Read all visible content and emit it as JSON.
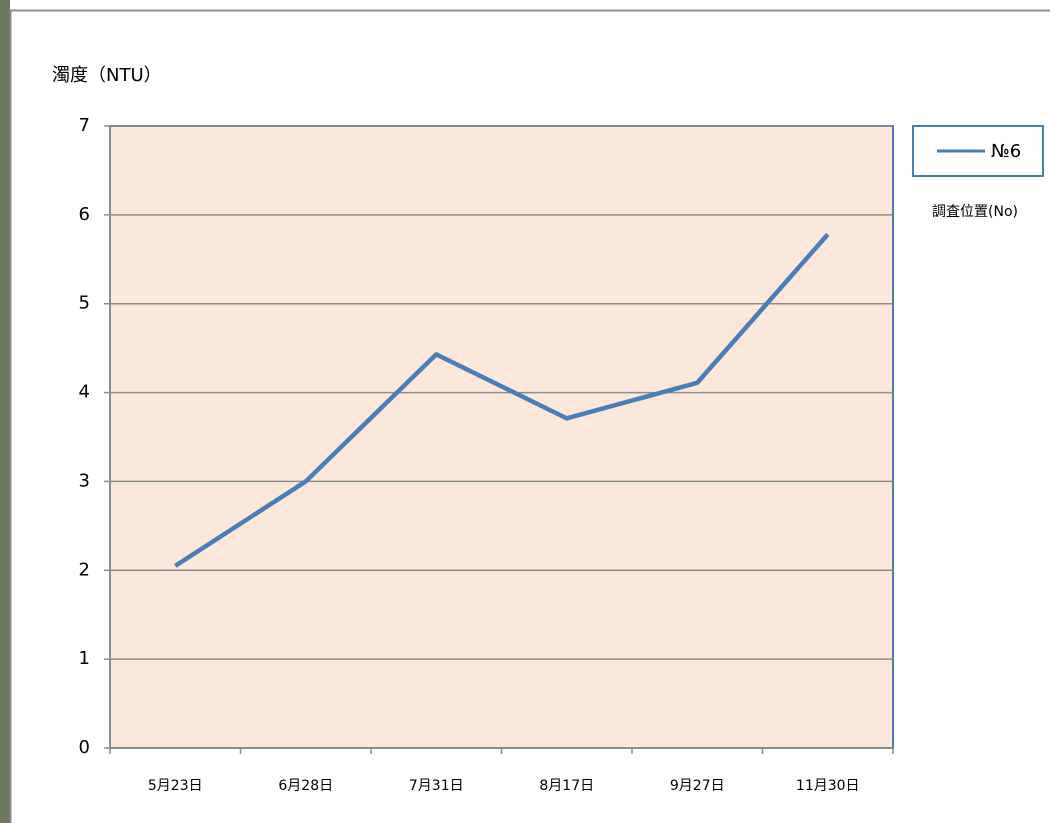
{
  "chart_data": {
    "type": "line",
    "y_axis_label": "濁度（NTU）",
    "categories": [
      "5月23日",
      "6月28日",
      "7月31日",
      "8月17日",
      "9月27日",
      "11月30日"
    ],
    "series": [
      {
        "name": "№6",
        "color": "#4a7ebb",
        "values": [
          2.05,
          3.0,
          4.43,
          3.71,
          4.11,
          5.78
        ]
      }
    ],
    "legend_title": "調査位置(No)",
    "ylim": [
      0,
      7
    ],
    "yticks": [
      0,
      1,
      2,
      3,
      4,
      5,
      6,
      7
    ],
    "grid": true,
    "legend": "right"
  }
}
